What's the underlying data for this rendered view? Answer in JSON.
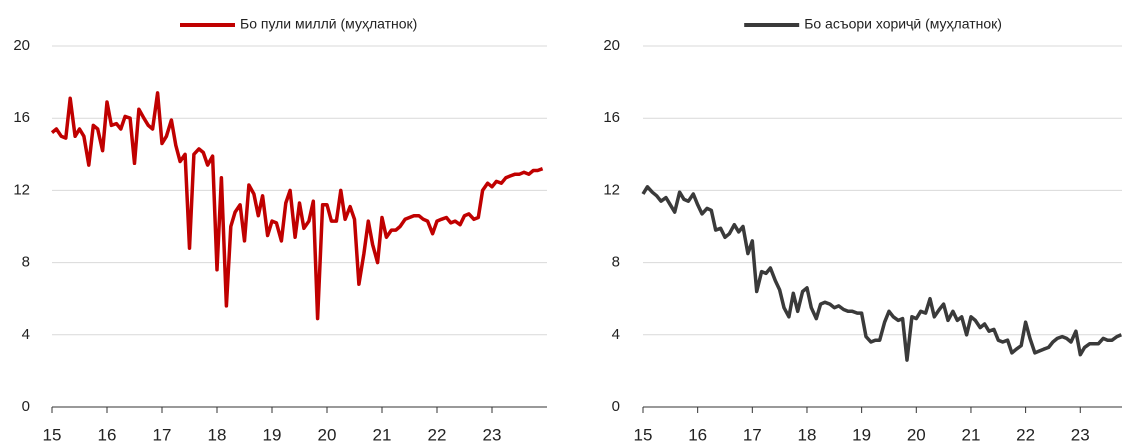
{
  "chart_data": [
    {
      "type": "line",
      "x": [
        15.0,
        15.08,
        15.17,
        15.25,
        15.33,
        15.42,
        15.5,
        15.58,
        15.67,
        15.75,
        15.83,
        15.92,
        16.0,
        16.08,
        16.17,
        16.25,
        16.33,
        16.42,
        16.5,
        16.58,
        16.67,
        16.75,
        16.83,
        16.92,
        17.0,
        17.08,
        17.17,
        17.25,
        17.33,
        17.42,
        17.5,
        17.58,
        17.67,
        17.75,
        17.83,
        17.92,
        18.0,
        18.08,
        18.17,
        18.25,
        18.33,
        18.42,
        18.5,
        18.58,
        18.67,
        18.75,
        18.83,
        18.92,
        19.0,
        19.08,
        19.17,
        19.25,
        19.33,
        19.42,
        19.5,
        19.58,
        19.67,
        19.75,
        19.83,
        19.92,
        20.0,
        20.08,
        20.17,
        20.25,
        20.33,
        20.42,
        20.5,
        20.58,
        20.67,
        20.75,
        20.83,
        20.92,
        21.0,
        21.08,
        21.17,
        21.25,
        21.33,
        21.42,
        21.5,
        21.58,
        21.67,
        21.75,
        21.83,
        21.92,
        22.0,
        22.08,
        22.17,
        22.25,
        22.33,
        22.42,
        22.5,
        22.58,
        22.67,
        22.75,
        22.83,
        22.92,
        23.0,
        23.08,
        23.17,
        23.25,
        23.33,
        23.42,
        23.5,
        23.58,
        23.67,
        23.75,
        23.83,
        23.92
      ],
      "series": [
        {
          "name": "Бо пули миллӣ (муҳлатнок)",
          "color": "#c00000",
          "values": [
            15.2,
            15.4,
            15.0,
            14.9,
            17.1,
            15.0,
            15.4,
            15.0,
            13.4,
            15.6,
            15.4,
            14.2,
            16.9,
            15.6,
            15.7,
            15.4,
            16.1,
            16.0,
            13.5,
            16.5,
            16.0,
            15.6,
            15.4,
            17.4,
            14.6,
            15.0,
            15.9,
            14.5,
            13.6,
            14.0,
            8.8,
            14.0,
            14.3,
            14.1,
            13.4,
            13.9,
            7.6,
            12.7,
            5.6,
            10.0,
            10.8,
            11.2,
            9.2,
            12.3,
            11.8,
            10.6,
            11.7,
            9.5,
            10.3,
            10.2,
            9.2,
            11.3,
            12.0,
            9.4,
            11.3,
            9.9,
            10.3,
            11.4,
            4.9,
            11.2,
            11.2,
            10.3,
            10.3,
            12.0,
            10.4,
            11.1,
            10.4,
            6.8,
            8.5,
            10.3,
            9.0,
            8.0,
            10.5,
            9.4,
            9.8,
            9.8,
            10.0,
            10.4,
            10.5,
            10.6,
            10.6,
            10.4,
            10.3,
            9.6,
            10.3,
            10.4,
            10.5,
            10.2,
            10.3,
            10.1,
            10.6,
            10.7,
            10.4,
            10.5,
            12.0,
            12.4,
            12.2,
            12.5,
            12.4,
            12.7,
            12.8,
            12.9,
            12.9,
            13.0,
            12.9,
            13.1,
            13.1,
            13.2
          ]
        }
      ],
      "xlim": [
        15,
        24
      ],
      "xticks": [
        15,
        16,
        17,
        18,
        19,
        20,
        21,
        22,
        23
      ],
      "ylim": [
        0,
        20
      ],
      "yticks": [
        0,
        4,
        8,
        12,
        16,
        20
      ],
      "grid": true
    },
    {
      "type": "line",
      "x": [
        15.0,
        15.08,
        15.17,
        15.25,
        15.33,
        15.42,
        15.5,
        15.58,
        15.67,
        15.75,
        15.83,
        15.92,
        16.0,
        16.08,
        16.17,
        16.25,
        16.33,
        16.42,
        16.5,
        16.58,
        16.67,
        16.75,
        16.83,
        16.92,
        17.0,
        17.08,
        17.17,
        17.25,
        17.33,
        17.42,
        17.5,
        17.58,
        17.67,
        17.75,
        17.83,
        17.92,
        18.0,
        18.08,
        18.17,
        18.25,
        18.33,
        18.42,
        18.5,
        18.58,
        18.67,
        18.75,
        18.83,
        18.92,
        19.0,
        19.08,
        19.17,
        19.25,
        19.33,
        19.42,
        19.5,
        19.58,
        19.67,
        19.75,
        19.83,
        19.92,
        20.0,
        20.08,
        20.17,
        20.25,
        20.33,
        20.42,
        20.5,
        20.58,
        20.67,
        20.75,
        20.83,
        20.92,
        21.0,
        21.08,
        21.17,
        21.25,
        21.33,
        21.42,
        21.5,
        21.58,
        21.67,
        21.75,
        21.83,
        21.92,
        22.0,
        22.08,
        22.17,
        22.25,
        22.33,
        22.42,
        22.5,
        22.58,
        22.67,
        22.75,
        22.83,
        22.92,
        23.0,
        23.08,
        23.17,
        23.25,
        23.33,
        23.42,
        23.5,
        23.58,
        23.67,
        23.75
      ],
      "series": [
        {
          "name": "Бо асъори хориҷӣ (муҳлатнок)",
          "color": "#3a3a3a",
          "values": [
            11.8,
            12.2,
            11.9,
            11.7,
            11.4,
            11.6,
            11.2,
            10.8,
            11.9,
            11.5,
            11.4,
            11.8,
            11.2,
            10.7,
            11.0,
            10.9,
            9.8,
            9.9,
            9.4,
            9.6,
            10.1,
            9.7,
            10.0,
            8.5,
            9.2,
            6.4,
            7.5,
            7.4,
            7.7,
            7.0,
            6.5,
            5.5,
            5.0,
            6.3,
            5.3,
            6.4,
            6.6,
            5.5,
            4.9,
            5.7,
            5.8,
            5.7,
            5.5,
            5.6,
            5.4,
            5.3,
            5.3,
            5.2,
            5.2,
            3.9,
            3.6,
            3.7,
            3.7,
            4.7,
            5.3,
            5.0,
            4.8,
            4.9,
            2.6,
            5.0,
            4.9,
            5.3,
            5.2,
            6.0,
            5.0,
            5.4,
            5.7,
            4.8,
            5.3,
            4.8,
            5.0,
            4.0,
            5.0,
            4.8,
            4.4,
            4.6,
            4.2,
            4.3,
            3.7,
            3.6,
            3.7,
            3.0,
            3.2,
            3.4,
            4.7,
            3.8,
            3.0,
            3.1,
            3.2,
            3.3,
            3.6,
            3.8,
            3.9,
            3.8,
            3.6,
            4.2,
            2.9,
            3.3,
            3.5,
            3.5,
            3.5,
            3.8,
            3.7,
            3.7,
            3.9,
            4.0
          ]
        }
      ],
      "xlim": [
        15,
        23.8
      ],
      "xticks": [
        15,
        16,
        17,
        18,
        19,
        20,
        21,
        22,
        23
      ],
      "ylim": [
        0,
        20
      ],
      "yticks": [
        0,
        4,
        8,
        12,
        16,
        20
      ],
      "grid": true
    }
  ]
}
